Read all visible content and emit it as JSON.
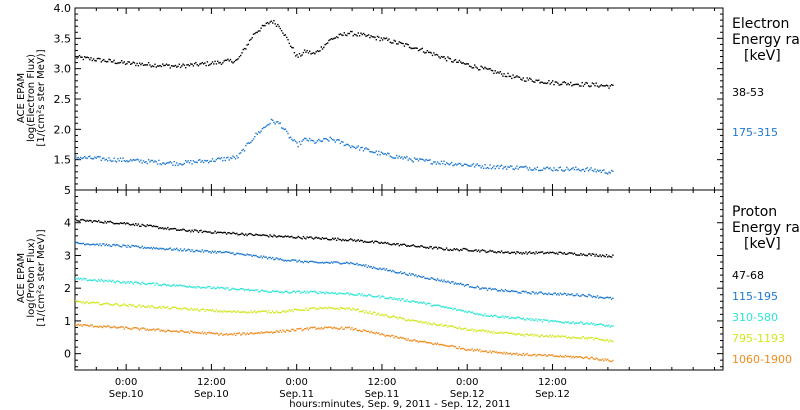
{
  "chart_data": [
    {
      "panel": "electron",
      "type": "scatter",
      "ylabel": [
        "ACE EPAM",
        "log(Electron Flux)",
        "[1/(cm²s ster MeV)]"
      ],
      "ylim": [
        1.0,
        4.0
      ],
      "y_ticks": [
        "1.5",
        "2.0",
        "2.5",
        "3.0",
        "3.5",
        "4.0"
      ],
      "y_tick_values": [
        1.5,
        2.0,
        2.5,
        3.0,
        3.5,
        4.0
      ],
      "legend_title": [
        "Electron",
        "Energy ran",
        "[keV]"
      ],
      "series": [
        {
          "name": "38-53",
          "color": "#000000",
          "x": [
            -0.3,
            0.0,
            0.3,
            0.5,
            0.65,
            0.75,
            0.85,
            0.9,
            0.95,
            1.0,
            1.05,
            1.1,
            1.2,
            1.3,
            1.5,
            1.7,
            1.9,
            2.1,
            2.3,
            2.5,
            2.7,
            2.85
          ],
          "y": [
            3.2,
            3.1,
            3.05,
            3.1,
            3.15,
            3.6,
            3.8,
            3.7,
            3.45,
            3.2,
            3.3,
            3.25,
            3.5,
            3.6,
            3.5,
            3.35,
            3.15,
            3.0,
            2.85,
            2.78,
            2.75,
            2.72
          ]
        },
        {
          "name": "175-315",
          "color": "#1e78d2",
          "x": [
            -0.3,
            0.0,
            0.3,
            0.5,
            0.65,
            0.75,
            0.85,
            0.9,
            0.95,
            1.0,
            1.05,
            1.1,
            1.2,
            1.3,
            1.5,
            1.7,
            1.9,
            2.1,
            2.3,
            2.5,
            2.7,
            2.85
          ],
          "y": [
            1.55,
            1.5,
            1.45,
            1.5,
            1.55,
            1.9,
            2.15,
            2.1,
            1.9,
            1.75,
            1.85,
            1.8,
            1.85,
            1.75,
            1.6,
            1.5,
            1.45,
            1.4,
            1.38,
            1.36,
            1.35,
            1.3
          ]
        }
      ]
    },
    {
      "panel": "proton",
      "type": "scatter",
      "ylabel": [
        "ACE EPAM",
        "log(Proton Flux)",
        "[1/(cm²s ster MeV)]"
      ],
      "ylim": [
        -0.5,
        5.0
      ],
      "y_ticks": [
        "0",
        "1",
        "2",
        "3",
        "4",
        "5"
      ],
      "y_tick_values": [
        0,
        1,
        2,
        3,
        4,
        5
      ],
      "legend_title": [
        "Proton",
        "Energy ran",
        "[keV]"
      ],
      "series": [
        {
          "name": "47-68",
          "color": "#000000",
          "x": [
            -0.3,
            0.0,
            0.3,
            0.6,
            0.9,
            1.1,
            1.3,
            1.5,
            1.7,
            1.9,
            2.0,
            2.1,
            2.3,
            2.5,
            2.7,
            2.85
          ],
          "y": [
            4.1,
            4.0,
            3.8,
            3.7,
            3.6,
            3.55,
            3.5,
            3.4,
            3.3,
            3.2,
            3.2,
            3.15,
            3.1,
            3.1,
            3.05,
            3.0
          ]
        },
        {
          "name": "115-195",
          "color": "#1e78d2",
          "x": [
            -0.3,
            0.0,
            0.3,
            0.6,
            0.9,
            1.1,
            1.3,
            1.5,
            1.7,
            1.9,
            2.0,
            2.1,
            2.3,
            2.5,
            2.7,
            2.85
          ],
          "y": [
            3.4,
            3.3,
            3.2,
            3.1,
            2.9,
            2.8,
            2.8,
            2.6,
            2.4,
            2.2,
            2.1,
            2.0,
            1.9,
            1.85,
            1.8,
            1.7
          ]
        },
        {
          "name": "310-580",
          "color": "#2ee6d6",
          "x": [
            -0.3,
            0.0,
            0.3,
            0.6,
            0.9,
            1.1,
            1.3,
            1.5,
            1.7,
            1.9,
            2.0,
            2.1,
            2.3,
            2.5,
            2.7,
            2.85
          ],
          "y": [
            2.3,
            2.2,
            2.1,
            2.0,
            1.9,
            1.9,
            1.85,
            1.75,
            1.6,
            1.4,
            1.3,
            1.2,
            1.1,
            1.0,
            0.95,
            0.85
          ]
        },
        {
          "name": "795-1193",
          "color": "#d2e61e",
          "x": [
            -0.3,
            0.0,
            0.3,
            0.6,
            0.9,
            1.1,
            1.3,
            1.5,
            1.7,
            1.9,
            2.0,
            2.1,
            2.3,
            2.5,
            2.7,
            2.85
          ],
          "y": [
            1.6,
            1.5,
            1.4,
            1.3,
            1.3,
            1.4,
            1.4,
            1.2,
            1.0,
            0.85,
            0.75,
            0.7,
            0.6,
            0.55,
            0.5,
            0.4
          ]
        },
        {
          "name": "1060-1900",
          "color": "#f08c1e",
          "x": [
            -0.3,
            0.0,
            0.3,
            0.6,
            0.9,
            1.1,
            1.3,
            1.5,
            1.7,
            1.9,
            2.0,
            2.1,
            2.3,
            2.5,
            2.7,
            2.85
          ],
          "y": [
            0.9,
            0.8,
            0.7,
            0.6,
            0.7,
            0.8,
            0.8,
            0.6,
            0.4,
            0.25,
            0.15,
            0.1,
            0.0,
            -0.05,
            -0.1,
            -0.2
          ]
        }
      ]
    }
  ],
  "x_axis": {
    "ticks": [
      {
        "value": 0.0,
        "time": "0:00",
        "date": "Sep.10"
      },
      {
        "value": 0.5,
        "time": "12:00",
        "date": "Sep.10"
      },
      {
        "value": 1.0,
        "time": "0:00",
        "date": "Sep.11"
      },
      {
        "value": 1.5,
        "time": "12:00",
        "date": "Sep.11"
      },
      {
        "value": 2.0,
        "time": "0:00",
        "date": "Sep.12"
      },
      {
        "value": 2.5,
        "time": "12:00",
        "date": "Sep.12"
      }
    ],
    "xlim": [
      -0.3,
      3.5
    ],
    "label": "hours:minutes, Sep.  9, 2011 - Sep. 12, 2011"
  }
}
